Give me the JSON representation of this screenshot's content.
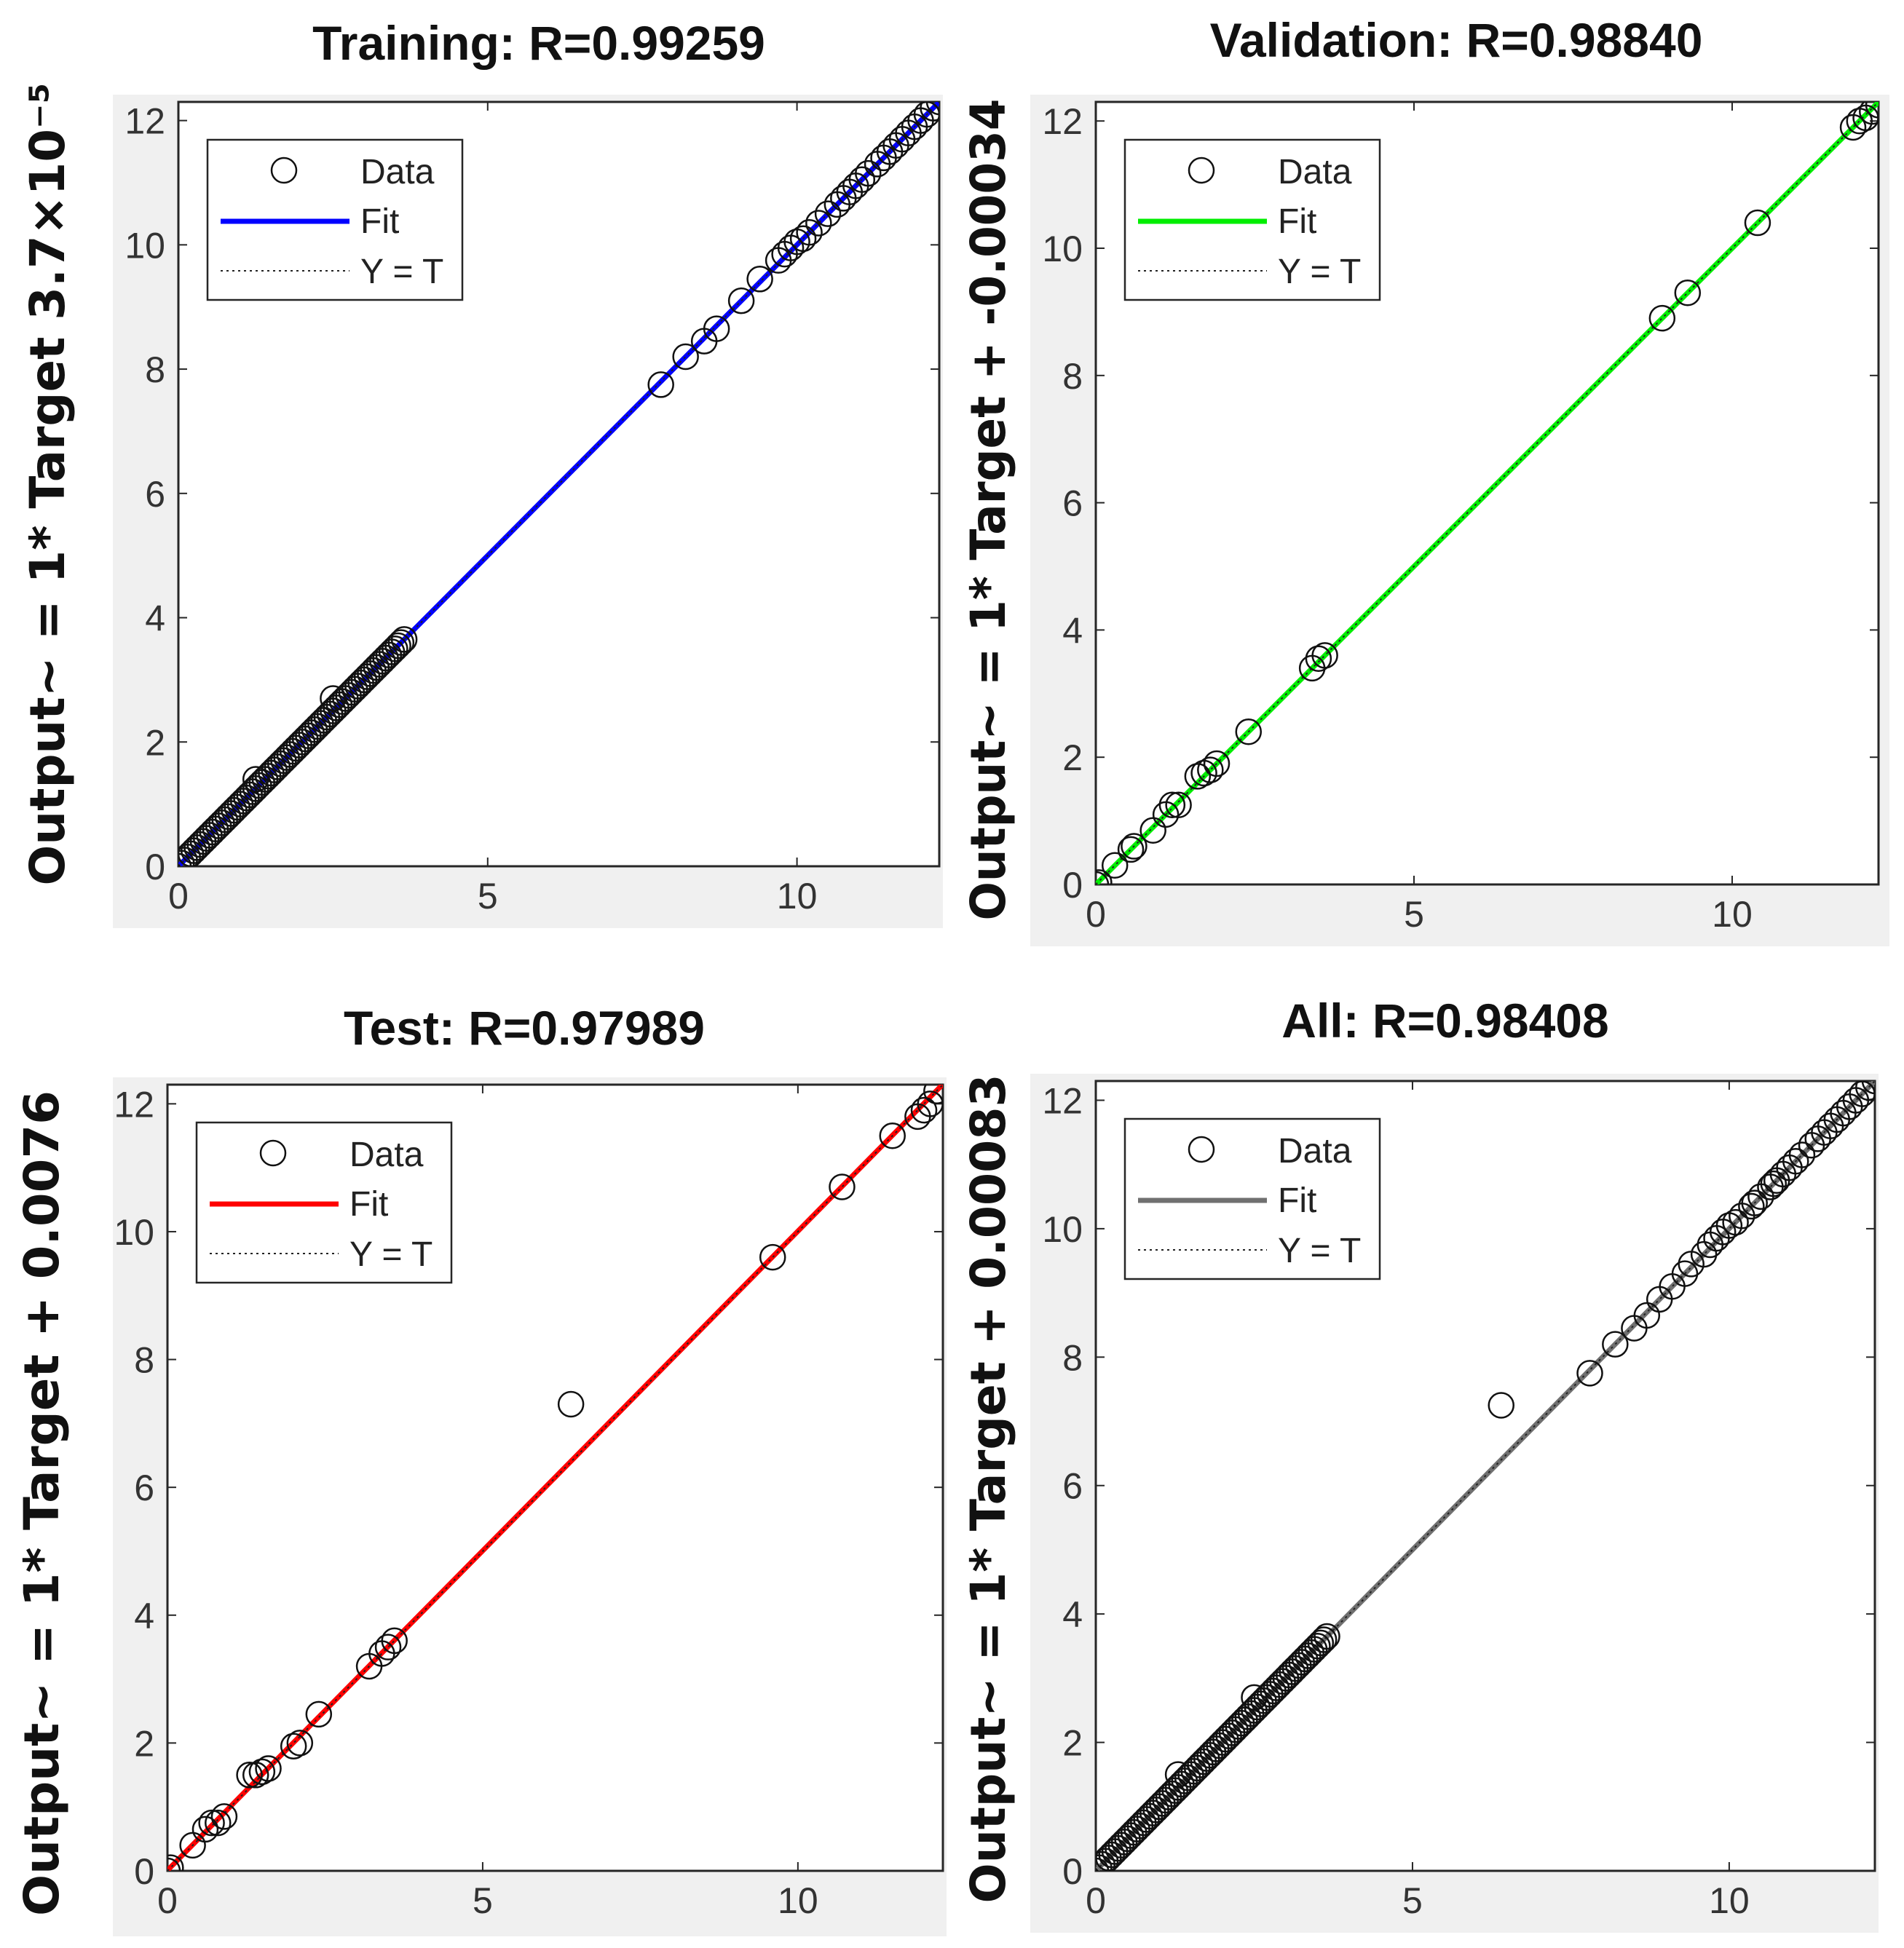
{
  "chart_data": [
    {
      "type": "scatter",
      "title": "Training: R=0.99259",
      "ylabel": "Output~ = 1* Target 3.7×10⁻⁵",
      "xlabel": "",
      "xlim": [
        0,
        12.3
      ],
      "ylim": [
        0,
        12.3
      ],
      "xticks": [
        "0",
        "5",
        "10"
      ],
      "yticks": [
        "0",
        "2",
        "4",
        "6",
        "8",
        "10",
        "12"
      ],
      "grid": false,
      "legend_position": "top-left",
      "legend": [
        "Data",
        "Fit",
        "Y = T"
      ],
      "fit_color": "#0000ff",
      "fit": {
        "slope": 1,
        "intercept": 3.7e-05
      },
      "points": [
        [
          0,
          0
        ],
        [
          0.05,
          0.05
        ],
        [
          0.1,
          0.1
        ],
        [
          0.15,
          0.15
        ],
        [
          0.2,
          0.2
        ],
        [
          0.25,
          0.25
        ],
        [
          0.3,
          0.3
        ],
        [
          0.35,
          0.35
        ],
        [
          0.4,
          0.4
        ],
        [
          0.45,
          0.45
        ],
        [
          0.5,
          0.5
        ],
        [
          0.55,
          0.55
        ],
        [
          0.6,
          0.6
        ],
        [
          0.65,
          0.65
        ],
        [
          0.7,
          0.7
        ],
        [
          0.75,
          0.75
        ],
        [
          0.8,
          0.8
        ],
        [
          0.85,
          0.85
        ],
        [
          0.9,
          0.9
        ],
        [
          0.95,
          0.95
        ],
        [
          1,
          1
        ],
        [
          1.05,
          1.05
        ],
        [
          1.1,
          1.1
        ],
        [
          1.15,
          1.15
        ],
        [
          1.2,
          1.2
        ],
        [
          1.25,
          1.25
        ],
        [
          1.3,
          1.3
        ],
        [
          1.35,
          1.35
        ],
        [
          1.4,
          1.4
        ],
        [
          1.45,
          1.45
        ],
        [
          1.5,
          1.5
        ],
        [
          1.55,
          1.55
        ],
        [
          1.6,
          1.6
        ],
        [
          1.65,
          1.65
        ],
        [
          1.7,
          1.7
        ],
        [
          1.75,
          1.75
        ],
        [
          1.8,
          1.8
        ],
        [
          1.85,
          1.85
        ],
        [
          1.9,
          1.9
        ],
        [
          1.95,
          1.95
        ],
        [
          2,
          2
        ],
        [
          2.05,
          2.05
        ],
        [
          2.1,
          2.1
        ],
        [
          2.15,
          2.15
        ],
        [
          2.2,
          2.2
        ],
        [
          2.25,
          2.25
        ],
        [
          2.3,
          2.3
        ],
        [
          2.35,
          2.35
        ],
        [
          2.4,
          2.4
        ],
        [
          2.45,
          2.45
        ],
        [
          2.5,
          2.5
        ],
        [
          2.55,
          2.55
        ],
        [
          2.6,
          2.6
        ],
        [
          2.65,
          2.65
        ],
        [
          2.7,
          2.7
        ],
        [
          2.75,
          2.75
        ],
        [
          2.8,
          2.8
        ],
        [
          2.85,
          2.85
        ],
        [
          2.9,
          2.9
        ],
        [
          2.95,
          2.95
        ],
        [
          3,
          3
        ],
        [
          3.05,
          3.05
        ],
        [
          3.1,
          3.1
        ],
        [
          3.15,
          3.15
        ],
        [
          3.2,
          3.2
        ],
        [
          3.25,
          3.25
        ],
        [
          3.3,
          3.3
        ],
        [
          3.35,
          3.35
        ],
        [
          3.4,
          3.4
        ],
        [
          3.45,
          3.45
        ],
        [
          3.5,
          3.5
        ],
        [
          3.55,
          3.55
        ],
        [
          3.6,
          3.6
        ],
        [
          3.65,
          3.65
        ],
        [
          1.25,
          1.4
        ],
        [
          2.5,
          2.7
        ],
        [
          7.8,
          7.75
        ],
        [
          8.2,
          8.2
        ],
        [
          8.5,
          8.45
        ],
        [
          8.7,
          8.65
        ],
        [
          9.1,
          9.1
        ],
        [
          9.4,
          9.45
        ],
        [
          9.7,
          9.75
        ],
        [
          9.8,
          9.85
        ],
        [
          9.9,
          9.95
        ],
        [
          10.0,
          10.05
        ],
        [
          10.1,
          10.1
        ],
        [
          10.2,
          10.2
        ],
        [
          10.35,
          10.35
        ],
        [
          10.5,
          10.5
        ],
        [
          10.65,
          10.65
        ],
        [
          10.75,
          10.75
        ],
        [
          10.85,
          10.85
        ],
        [
          10.95,
          10.95
        ],
        [
          11.05,
          11.05
        ],
        [
          11.15,
          11.15
        ],
        [
          11.3,
          11.3
        ],
        [
          11.4,
          11.4
        ],
        [
          11.5,
          11.5
        ],
        [
          11.6,
          11.6
        ],
        [
          11.7,
          11.7
        ],
        [
          11.8,
          11.8
        ],
        [
          11.9,
          11.9
        ],
        [
          12.0,
          12.0
        ],
        [
          12.1,
          12.1
        ],
        [
          12.2,
          12.2
        ],
        [
          12.3,
          12.3
        ]
      ]
    },
    {
      "type": "scatter",
      "title": "Validation: R=0.98840",
      "ylabel": "Output~ = 1* Target + -0.00034",
      "xlabel": "",
      "xlim": [
        0,
        12.3
      ],
      "ylim": [
        0,
        12.3
      ],
      "xticks": [
        "0",
        "5",
        "10"
      ],
      "yticks": [
        "0",
        "2",
        "4",
        "6",
        "8",
        "10",
        "12"
      ],
      "grid": false,
      "legend_position": "top-left",
      "legend": [
        "Data",
        "Fit",
        "Y = T"
      ],
      "fit_color": "#00ee00",
      "fit": {
        "slope": 1,
        "intercept": -0.00034
      },
      "points": [
        [
          0,
          0
        ],
        [
          0.05,
          0.03
        ],
        [
          0.3,
          0.3
        ],
        [
          0.55,
          0.55
        ],
        [
          0.6,
          0.6
        ],
        [
          0.9,
          0.85
        ],
        [
          1.1,
          1.1
        ],
        [
          1.2,
          1.25
        ],
        [
          1.3,
          1.25
        ],
        [
          1.6,
          1.7
        ],
        [
          1.7,
          1.75
        ],
        [
          1.8,
          1.8
        ],
        [
          1.9,
          1.9
        ],
        [
          2.4,
          2.4
        ],
        [
          3.4,
          3.4
        ],
        [
          3.5,
          3.55
        ],
        [
          3.6,
          3.6
        ],
        [
          8.9,
          8.9
        ],
        [
          9.3,
          9.3
        ],
        [
          10.4,
          10.4
        ],
        [
          11.9,
          11.9
        ],
        [
          12.0,
          12.0
        ],
        [
          12.1,
          12.05
        ],
        [
          12.2,
          12.15
        ],
        [
          12.3,
          12.25
        ]
      ]
    },
    {
      "type": "scatter",
      "title": "Test: R=0.97989",
      "ylabel": "Output~ = 1* Target + 0.0076",
      "xlabel": "",
      "xlim": [
        0,
        12.3
      ],
      "ylim": [
        0,
        12.3
      ],
      "xticks": [
        "0",
        "5",
        "10"
      ],
      "yticks": [
        "0",
        "2",
        "4",
        "6",
        "8",
        "10",
        "12"
      ],
      "grid": false,
      "legend_position": "top-left",
      "legend": [
        "Data",
        "Fit",
        "Y = T"
      ],
      "fit_color": "#ff0000",
      "fit": {
        "slope": 1,
        "intercept": 0.0076
      },
      "points": [
        [
          0,
          0
        ],
        [
          0.05,
          0.05
        ],
        [
          0.4,
          0.4
        ],
        [
          0.6,
          0.65
        ],
        [
          0.7,
          0.75
        ],
        [
          0.8,
          0.75
        ],
        [
          0.9,
          0.85
        ],
        [
          1.3,
          1.5
        ],
        [
          1.4,
          1.5
        ],
        [
          1.5,
          1.55
        ],
        [
          1.6,
          1.6
        ],
        [
          2.0,
          1.95
        ],
        [
          2.1,
          2.0
        ],
        [
          2.4,
          2.45
        ],
        [
          3.2,
          3.2
        ],
        [
          3.4,
          3.4
        ],
        [
          3.5,
          3.5
        ],
        [
          3.6,
          3.6
        ],
        [
          6.4,
          7.3
        ],
        [
          9.6,
          9.6
        ],
        [
          10.7,
          10.7
        ],
        [
          11.5,
          11.5
        ],
        [
          11.9,
          11.8
        ],
        [
          12.0,
          11.9
        ],
        [
          12.1,
          12.0
        ],
        [
          12.2,
          12.2
        ]
      ]
    },
    {
      "type": "scatter",
      "title": "All: R=0.98408",
      "ylabel": "Output~ = 1* Target + 0.00083",
      "xlabel": "",
      "xlim": [
        0,
        12.3
      ],
      "ylim": [
        0,
        12.3
      ],
      "xticks": [
        "0",
        "5",
        "10"
      ],
      "yticks": [
        "0",
        "2",
        "4",
        "6",
        "8",
        "10",
        "12"
      ],
      "grid": false,
      "legend_position": "top-left",
      "legend": [
        "Data",
        "Fit",
        "Y = T"
      ],
      "fit_color": "#707070",
      "fit": {
        "slope": 1,
        "intercept": 0.00083
      },
      "points": [
        [
          0,
          0
        ],
        [
          0.05,
          0.05
        ],
        [
          0.1,
          0.1
        ],
        [
          0.15,
          0.15
        ],
        [
          0.2,
          0.2
        ],
        [
          0.25,
          0.25
        ],
        [
          0.3,
          0.3
        ],
        [
          0.35,
          0.35
        ],
        [
          0.4,
          0.4
        ],
        [
          0.45,
          0.45
        ],
        [
          0.5,
          0.5
        ],
        [
          0.55,
          0.55
        ],
        [
          0.6,
          0.6
        ],
        [
          0.65,
          0.65
        ],
        [
          0.7,
          0.7
        ],
        [
          0.75,
          0.75
        ],
        [
          0.8,
          0.8
        ],
        [
          0.85,
          0.85
        ],
        [
          0.9,
          0.9
        ],
        [
          0.95,
          0.95
        ],
        [
          1,
          1
        ],
        [
          1.05,
          1.05
        ],
        [
          1.1,
          1.1
        ],
        [
          1.15,
          1.15
        ],
        [
          1.2,
          1.2
        ],
        [
          1.25,
          1.25
        ],
        [
          1.3,
          1.3
        ],
        [
          1.35,
          1.35
        ],
        [
          1.4,
          1.4
        ],
        [
          1.45,
          1.45
        ],
        [
          1.5,
          1.5
        ],
        [
          1.55,
          1.55
        ],
        [
          1.6,
          1.6
        ],
        [
          1.65,
          1.65
        ],
        [
          1.7,
          1.7
        ],
        [
          1.75,
          1.75
        ],
        [
          1.8,
          1.8
        ],
        [
          1.85,
          1.85
        ],
        [
          1.9,
          1.9
        ],
        [
          1.95,
          1.95
        ],
        [
          2,
          2
        ],
        [
          2.05,
          2.05
        ],
        [
          2.1,
          2.1
        ],
        [
          2.15,
          2.15
        ],
        [
          2.2,
          2.2
        ],
        [
          2.25,
          2.25
        ],
        [
          2.3,
          2.3
        ],
        [
          2.35,
          2.35
        ],
        [
          2.4,
          2.4
        ],
        [
          2.45,
          2.45
        ],
        [
          2.5,
          2.5
        ],
        [
          2.55,
          2.55
        ],
        [
          2.6,
          2.6
        ],
        [
          2.65,
          2.65
        ],
        [
          2.7,
          2.7
        ],
        [
          2.75,
          2.75
        ],
        [
          2.8,
          2.8
        ],
        [
          2.85,
          2.85
        ],
        [
          2.9,
          2.9
        ],
        [
          2.95,
          2.95
        ],
        [
          3,
          3
        ],
        [
          3.05,
          3.05
        ],
        [
          3.1,
          3.1
        ],
        [
          3.15,
          3.15
        ],
        [
          3.2,
          3.2
        ],
        [
          3.25,
          3.25
        ],
        [
          3.3,
          3.3
        ],
        [
          3.35,
          3.35
        ],
        [
          3.4,
          3.4
        ],
        [
          3.45,
          3.45
        ],
        [
          3.5,
          3.5
        ],
        [
          3.55,
          3.55
        ],
        [
          3.6,
          3.6
        ],
        [
          3.65,
          3.65
        ],
        [
          1.3,
          1.5
        ],
        [
          2.5,
          2.7
        ],
        [
          6.4,
          7.25
        ],
        [
          7.8,
          7.75
        ],
        [
          8.2,
          8.2
        ],
        [
          8.5,
          8.45
        ],
        [
          8.7,
          8.65
        ],
        [
          8.9,
          8.9
        ],
        [
          9.1,
          9.1
        ],
        [
          9.3,
          9.3
        ],
        [
          9.4,
          9.45
        ],
        [
          9.6,
          9.6
        ],
        [
          9.7,
          9.75
        ],
        [
          9.8,
          9.85
        ],
        [
          9.9,
          9.95
        ],
        [
          10.0,
          10.05
        ],
        [
          10.1,
          10.1
        ],
        [
          10.2,
          10.2
        ],
        [
          10.35,
          10.35
        ],
        [
          10.4,
          10.4
        ],
        [
          10.5,
          10.5
        ],
        [
          10.65,
          10.65
        ],
        [
          10.7,
          10.7
        ],
        [
          10.75,
          10.75
        ],
        [
          10.85,
          10.85
        ],
        [
          10.95,
          10.95
        ],
        [
          11.05,
          11.05
        ],
        [
          11.15,
          11.15
        ],
        [
          11.3,
          11.3
        ],
        [
          11.4,
          11.4
        ],
        [
          11.5,
          11.5
        ],
        [
          11.6,
          11.6
        ],
        [
          11.7,
          11.7
        ],
        [
          11.8,
          11.8
        ],
        [
          11.9,
          11.9
        ],
        [
          12.0,
          12.0
        ],
        [
          12.1,
          12.1
        ],
        [
          12.2,
          12.2
        ],
        [
          12.3,
          12.3
        ]
      ]
    }
  ]
}
